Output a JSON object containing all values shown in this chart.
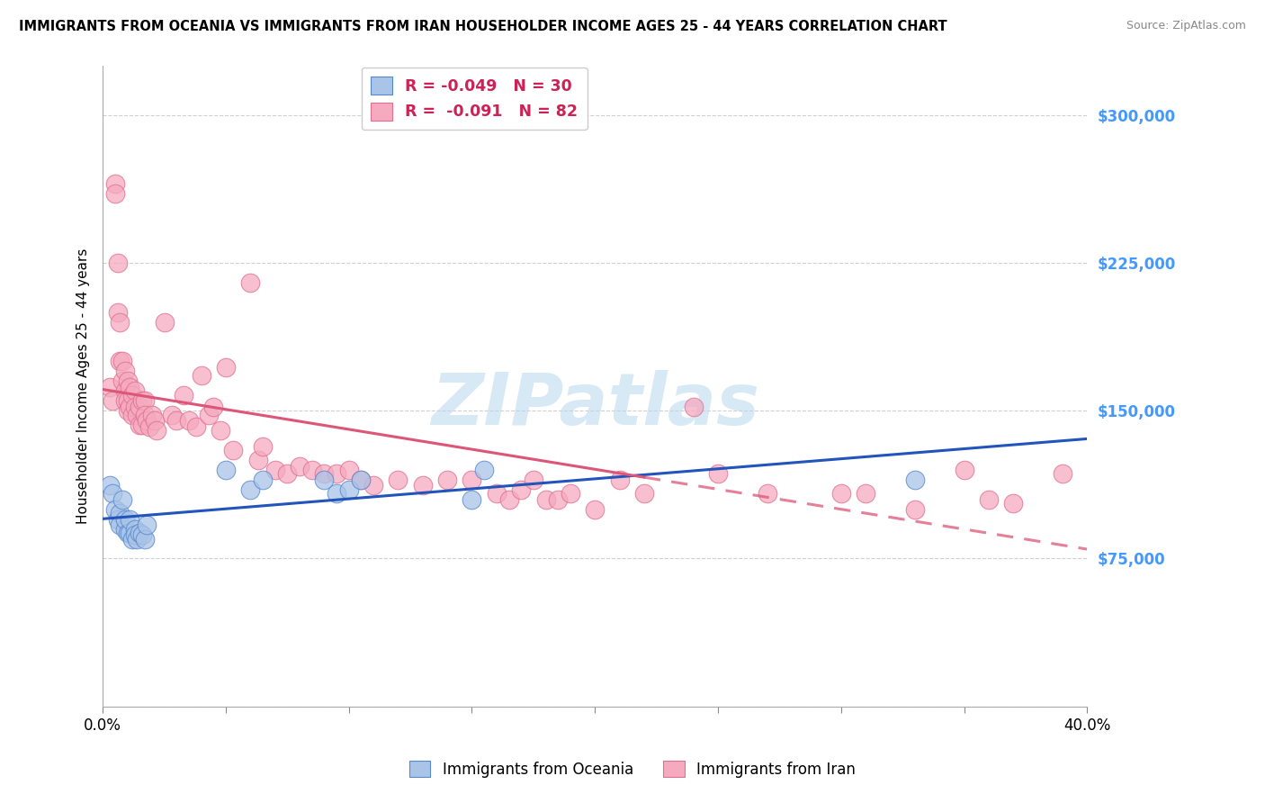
{
  "title": "IMMIGRANTS FROM OCEANIA VS IMMIGRANTS FROM IRAN HOUSEHOLDER INCOME AGES 25 - 44 YEARS CORRELATION CHART",
  "source": "Source: ZipAtlas.com",
  "ylabel": "Householder Income Ages 25 - 44 years",
  "xlim": [
    0,
    0.4
  ],
  "ylim": [
    0,
    325000
  ],
  "yticks": [
    0,
    75000,
    150000,
    225000,
    300000
  ],
  "ytick_labels": [
    "",
    "$75,000",
    "$150,000",
    "$225,000",
    "$300,000"
  ],
  "xticks": [
    0.0,
    0.05,
    0.1,
    0.15,
    0.2,
    0.25,
    0.3,
    0.35,
    0.4
  ],
  "xtick_labels": [
    "0.0%",
    "",
    "",
    "",
    "",
    "",
    "",
    "",
    "40.0%"
  ],
  "watermark": "ZIPatlas",
  "oceania_color": "#aac4e8",
  "iran_color": "#f5aabf",
  "oceania_edge_color": "#5588cc",
  "iran_edge_color": "#e07090",
  "oceania_line_color": "#2255bb",
  "iran_line_color": "#dd5577",
  "background_color": "#ffffff",
  "grid_color": "#d0d0d0",
  "right_tick_color": "#4499ff",
  "oceania_x": [
    0.003,
    0.004,
    0.005,
    0.006,
    0.007,
    0.007,
    0.008,
    0.009,
    0.009,
    0.01,
    0.011,
    0.011,
    0.012,
    0.013,
    0.013,
    0.014,
    0.015,
    0.016,
    0.017,
    0.018,
    0.05,
    0.06,
    0.065,
    0.09,
    0.095,
    0.1,
    0.105,
    0.15,
    0.155,
    0.33
  ],
  "oceania_y": [
    112000,
    108000,
    100000,
    95000,
    98000,
    92000,
    105000,
    90000,
    95000,
    88000,
    88000,
    95000,
    85000,
    90000,
    87000,
    85000,
    88000,
    87000,
    85000,
    92000,
    120000,
    110000,
    115000,
    115000,
    108000,
    110000,
    115000,
    105000,
    120000,
    115000
  ],
  "iran_x": [
    0.003,
    0.004,
    0.005,
    0.005,
    0.006,
    0.006,
    0.007,
    0.007,
    0.008,
    0.008,
    0.009,
    0.009,
    0.009,
    0.01,
    0.01,
    0.01,
    0.011,
    0.011,
    0.012,
    0.012,
    0.013,
    0.013,
    0.014,
    0.015,
    0.015,
    0.016,
    0.016,
    0.017,
    0.017,
    0.018,
    0.019,
    0.02,
    0.021,
    0.022,
    0.025,
    0.028,
    0.03,
    0.033,
    0.035,
    0.038,
    0.04,
    0.043,
    0.045,
    0.048,
    0.05,
    0.053,
    0.06,
    0.063,
    0.065,
    0.07,
    0.075,
    0.08,
    0.085,
    0.09,
    0.095,
    0.1,
    0.105,
    0.11,
    0.12,
    0.13,
    0.14,
    0.15,
    0.16,
    0.165,
    0.17,
    0.175,
    0.18,
    0.185,
    0.19,
    0.2,
    0.21,
    0.22,
    0.24,
    0.25,
    0.27,
    0.3,
    0.31,
    0.33,
    0.35,
    0.36,
    0.37,
    0.39
  ],
  "iran_y": [
    162000,
    155000,
    265000,
    260000,
    225000,
    200000,
    195000,
    175000,
    175000,
    165000,
    170000,
    160000,
    155000,
    165000,
    155000,
    150000,
    162000,
    152000,
    158000,
    148000,
    160000,
    152000,
    148000,
    152000,
    143000,
    155000,
    143000,
    155000,
    148000,
    145000,
    142000,
    148000,
    145000,
    140000,
    195000,
    148000,
    145000,
    158000,
    145000,
    142000,
    168000,
    148000,
    152000,
    140000,
    172000,
    130000,
    215000,
    125000,
    132000,
    120000,
    118000,
    122000,
    120000,
    118000,
    118000,
    120000,
    115000,
    112000,
    115000,
    112000,
    115000,
    115000,
    108000,
    105000,
    110000,
    115000,
    105000,
    105000,
    108000,
    100000,
    115000,
    108000,
    152000,
    118000,
    108000,
    108000,
    108000,
    100000,
    120000,
    105000,
    103000,
    118000
  ]
}
